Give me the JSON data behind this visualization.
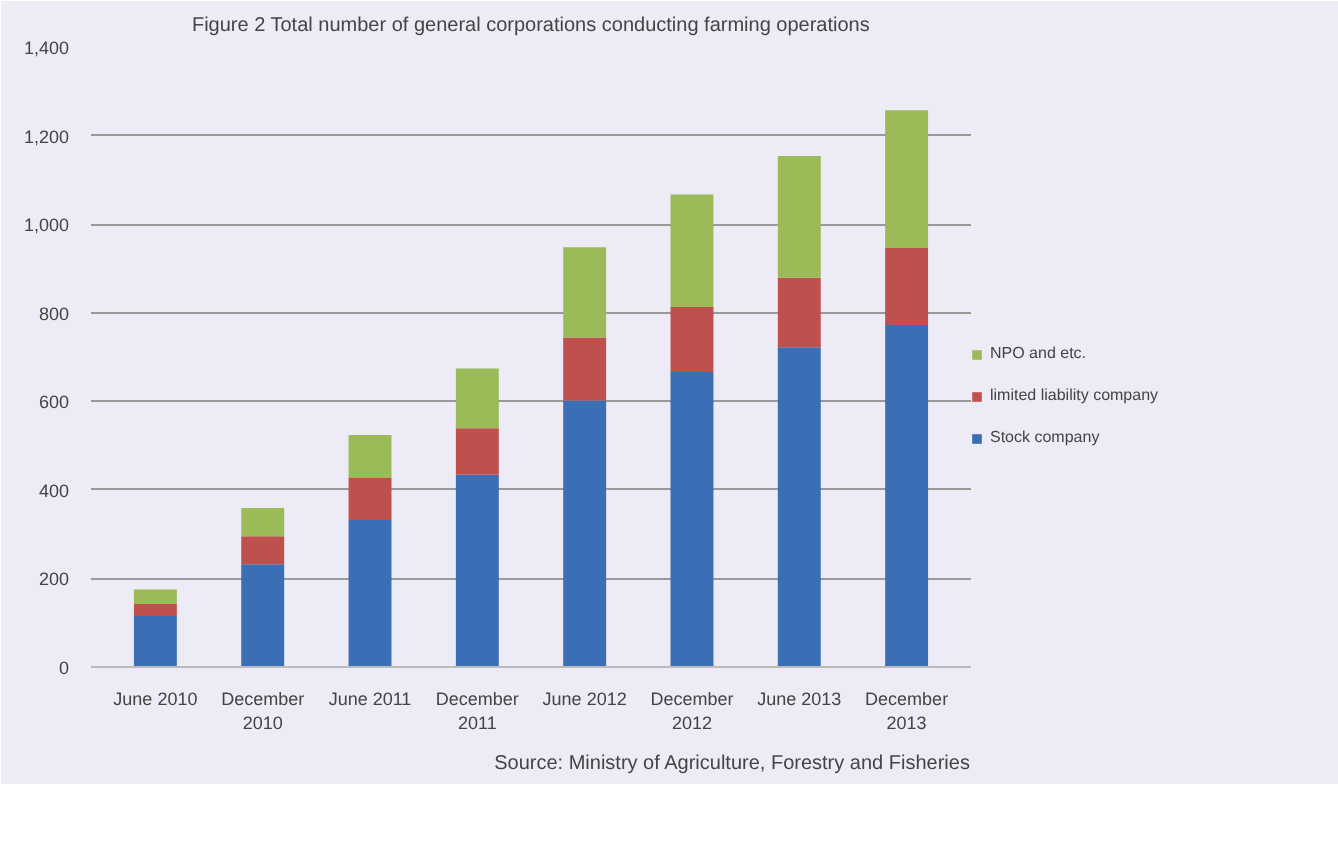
{
  "chart_data": {
    "type": "bar",
    "stacked": true,
    "title": "Figure 2 Total number of general corporations conducting farming operations",
    "categories": [
      "June 2010",
      "December\n2010",
      "June 2011",
      "December\n2011",
      "June 2012",
      "December\n2012",
      "June 2013",
      "December\n2013"
    ],
    "series": [
      {
        "name": "Stock company",
        "color": "#3a6fb5",
        "values": [
          115,
          232,
          332,
          434,
          602,
          666,
          722,
          772
        ]
      },
      {
        "name": "limited liability company",
        "color": "#c0504d",
        "values": [
          27,
          63,
          95,
          105,
          142,
          147,
          157,
          174
        ]
      },
      {
        "name": "NPO and etc.",
        "color": "#9bbb59",
        "values": [
          33,
          64,
          97,
          135,
          204,
          254,
          275,
          311
        ]
      }
    ],
    "ylim": [
      0,
      1400
    ],
    "yticks": [
      {
        "value": 0,
        "label": "0"
      },
      {
        "value": 200,
        "label": "200"
      },
      {
        "value": 400,
        "label": "400"
      },
      {
        "value": 600,
        "label": "600"
      },
      {
        "value": 800,
        "label": "800"
      },
      {
        "value": 1000,
        "label": "1,000"
      },
      {
        "value": 1200,
        "label": "1,200"
      },
      {
        "value": 1400,
        "label": "1,400"
      }
    ],
    "grid": "y",
    "legend": "right",
    "annotations": [
      "Source: Ministry of Agriculture, Forestry and Fisheries"
    ]
  }
}
